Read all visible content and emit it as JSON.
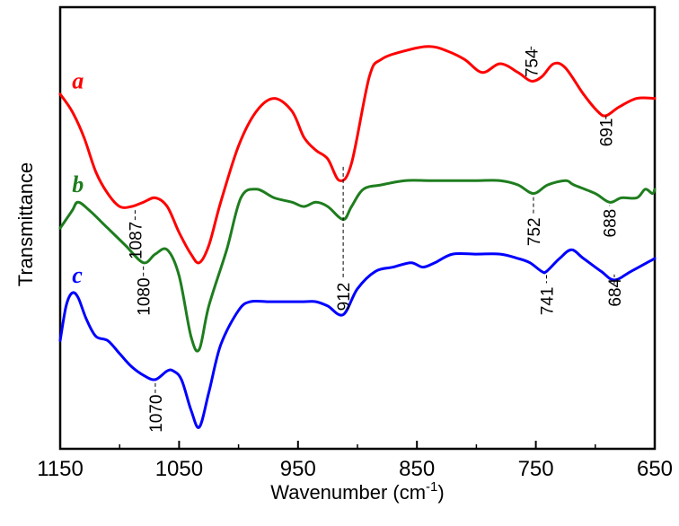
{
  "chart_data": {
    "type": "line",
    "xlabel": "Wavenumber (cm",
    "xlabel_sup": "-1",
    "xlabel_end": ")",
    "ylabel": "Transmittance",
    "xlim": [
      1150,
      650
    ],
    "x_reversed": true,
    "xticks": [
      "1150",
      "1050",
      "950",
      "850",
      "750",
      "650"
    ],
    "xtick_values": [
      1150,
      1050,
      950,
      850,
      750,
      650
    ],
    "y_units": "relative transmittance (arbitrary, offset per series)",
    "ylim": [
      0,
      100
    ],
    "legend": "inline series letters at left",
    "series": [
      {
        "name": "a",
        "color": "#ff0000",
        "points": [
          [
            1150,
            82
          ],
          [
            1140,
            78
          ],
          [
            1130,
            72
          ],
          [
            1120,
            64
          ],
          [
            1110,
            59
          ],
          [
            1100,
            56
          ],
          [
            1090,
            56
          ],
          [
            1080,
            57
          ],
          [
            1070,
            58
          ],
          [
            1060,
            56
          ],
          [
            1050,
            50
          ],
          [
            1040,
            45
          ],
          [
            1033,
            43
          ],
          [
            1025,
            47
          ],
          [
            1015,
            57
          ],
          [
            1000,
            70
          ],
          [
            985,
            78
          ],
          [
            970,
            81
          ],
          [
            955,
            78
          ],
          [
            945,
            72
          ],
          [
            935,
            69
          ],
          [
            925,
            67
          ],
          [
            915,
            62
          ],
          [
            905,
            66
          ],
          [
            890,
            86
          ],
          [
            880,
            90
          ],
          [
            860,
            92
          ],
          [
            840,
            93
          ],
          [
            825,
            92
          ],
          [
            810,
            90
          ],
          [
            795,
            87
          ],
          [
            780,
            89
          ],
          [
            765,
            87
          ],
          [
            754,
            85
          ],
          [
            745,
            86
          ],
          [
            735,
            89
          ],
          [
            725,
            88
          ],
          [
            710,
            82
          ],
          [
            698,
            78
          ],
          [
            691,
            77
          ],
          [
            680,
            79
          ],
          [
            665,
            81
          ],
          [
            650,
            81
          ]
        ]
      },
      {
        "name": "b",
        "color": "#1e7d1e",
        "points": [
          [
            1150,
            51
          ],
          [
            1140,
            55
          ],
          [
            1135,
            57
          ],
          [
            1125,
            55
          ],
          [
            1110,
            51
          ],
          [
            1095,
            47
          ],
          [
            1080,
            43
          ],
          [
            1070,
            45
          ],
          [
            1060,
            46
          ],
          [
            1050,
            40
          ],
          [
            1040,
            26
          ],
          [
            1033,
            23
          ],
          [
            1025,
            33
          ],
          [
            1010,
            46
          ],
          [
            998,
            58
          ],
          [
            985,
            60
          ],
          [
            970,
            58
          ],
          [
            955,
            57
          ],
          [
            945,
            56
          ],
          [
            935,
            57
          ],
          [
            925,
            56
          ],
          [
            912,
            53
          ],
          [
            905,
            56
          ],
          [
            895,
            60
          ],
          [
            880,
            61
          ],
          [
            860,
            62
          ],
          [
            840,
            62
          ],
          [
            820,
            62
          ],
          [
            800,
            62
          ],
          [
            780,
            62
          ],
          [
            765,
            61
          ],
          [
            752,
            59
          ],
          [
            740,
            61
          ],
          [
            725,
            62
          ],
          [
            718,
            61
          ],
          [
            700,
            59
          ],
          [
            688,
            57
          ],
          [
            678,
            58
          ],
          [
            665,
            58
          ],
          [
            658,
            60
          ],
          [
            652,
            59
          ],
          [
            650,
            60
          ]
        ]
      },
      {
        "name": "c",
        "color": "#0000ff",
        "points": [
          [
            1150,
            25
          ],
          [
            1145,
            33
          ],
          [
            1140,
            36
          ],
          [
            1135,
            35
          ],
          [
            1128,
            30
          ],
          [
            1120,
            26
          ],
          [
            1110,
            25
          ],
          [
            1100,
            22
          ],
          [
            1090,
            19
          ],
          [
            1080,
            17
          ],
          [
            1070,
            16
          ],
          [
            1060,
            18
          ],
          [
            1055,
            18
          ],
          [
            1048,
            16
          ],
          [
            1040,
            9
          ],
          [
            1033,
            5
          ],
          [
            1025,
            13
          ],
          [
            1015,
            24
          ],
          [
            1000,
            32
          ],
          [
            990,
            34
          ],
          [
            975,
            34
          ],
          [
            960,
            34
          ],
          [
            945,
            34
          ],
          [
            935,
            34
          ],
          [
            925,
            33
          ],
          [
            912,
            31
          ],
          [
            900,
            37
          ],
          [
            885,
            41
          ],
          [
            870,
            42
          ],
          [
            855,
            43
          ],
          [
            845,
            42
          ],
          [
            835,
            43
          ],
          [
            820,
            45
          ],
          [
            800,
            45
          ],
          [
            780,
            45
          ],
          [
            765,
            44
          ],
          [
            755,
            43
          ],
          [
            745,
            41
          ],
          [
            741,
            41
          ],
          [
            730,
            44
          ],
          [
            720,
            46
          ],
          [
            710,
            44
          ],
          [
            695,
            41
          ],
          [
            684,
            39
          ],
          [
            670,
            41
          ],
          [
            650,
            44
          ]
        ]
      }
    ],
    "series_labels": [
      {
        "text": "a",
        "series": 0,
        "x": 1140,
        "y": 85
      },
      {
        "text": "b",
        "series": 1,
        "x": 1140,
        "y": 61
      },
      {
        "text": "c",
        "series": 2,
        "x": 1140,
        "y": 40
      }
    ],
    "peak_markers": [
      {
        "label": "1087",
        "x": 1087,
        "y_top": 56,
        "y_bottom": 44
      },
      {
        "label": "1080",
        "x": 1080,
        "y_top": 43,
        "y_bottom": 31
      },
      {
        "label": "1070",
        "x": 1070,
        "y_top": 16,
        "y_bottom": 4
      },
      {
        "label": "912",
        "x": 912,
        "y_top": 66,
        "y_bottom": 31
      },
      {
        "label": "754",
        "x": 754,
        "y_top": 93,
        "y_bottom": 85
      },
      {
        "label": "752",
        "x": 752,
        "y_top": 59,
        "y_bottom": 46
      },
      {
        "label": "741",
        "x": 741,
        "y_top": 41,
        "y_bottom": 30
      },
      {
        "label": "691",
        "x": 691,
        "y_top": 77,
        "y_bottom": 69
      },
      {
        "label": "688",
        "x": 688,
        "y_top": 57,
        "y_bottom": 48
      },
      {
        "label": "684",
        "x": 684,
        "y_top": 39,
        "y_bottom": 32
      }
    ],
    "grid": false
  }
}
